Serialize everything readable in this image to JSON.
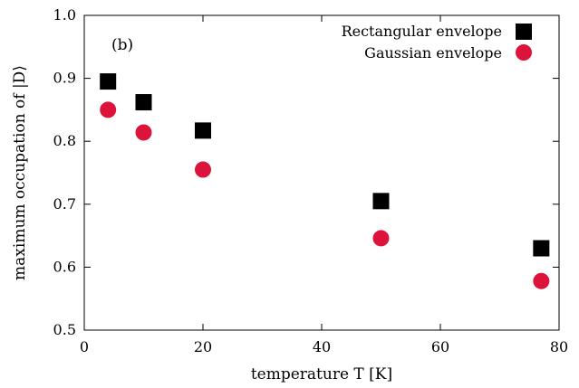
{
  "chart_data": {
    "type": "scatter",
    "panel_label": "(b)",
    "xlabel": "temperature T [K]",
    "ylabel": "maximum occupation of |D⟩",
    "xlim": [
      0,
      80
    ],
    "ylim": [
      0.5,
      1.0
    ],
    "x_ticks": [
      0,
      20,
      40,
      60,
      80
    ],
    "y_ticks": [
      0.5,
      0.6,
      0.7,
      0.8,
      0.9,
      1.0
    ],
    "x_tick_labels": [
      "0",
      "20",
      "40",
      "60",
      "80"
    ],
    "y_tick_labels": [
      "0.5",
      "0.6",
      "0.7",
      "0.8",
      "0.9",
      "1.0"
    ],
    "grid": false,
    "legend_position": "top-right",
    "series": [
      {
        "name": "Rectangular envelope",
        "marker": "square",
        "color": "#000000",
        "x": [
          4,
          10,
          20,
          50,
          77
        ],
        "y": [
          0.895,
          0.862,
          0.817,
          0.705,
          0.63
        ]
      },
      {
        "name": "Gaussian envelope",
        "marker": "circle",
        "color": "#dc143c",
        "x": [
          4,
          10,
          20,
          50,
          77
        ],
        "y": [
          0.85,
          0.814,
          0.755,
          0.646,
          0.578
        ]
      }
    ]
  }
}
